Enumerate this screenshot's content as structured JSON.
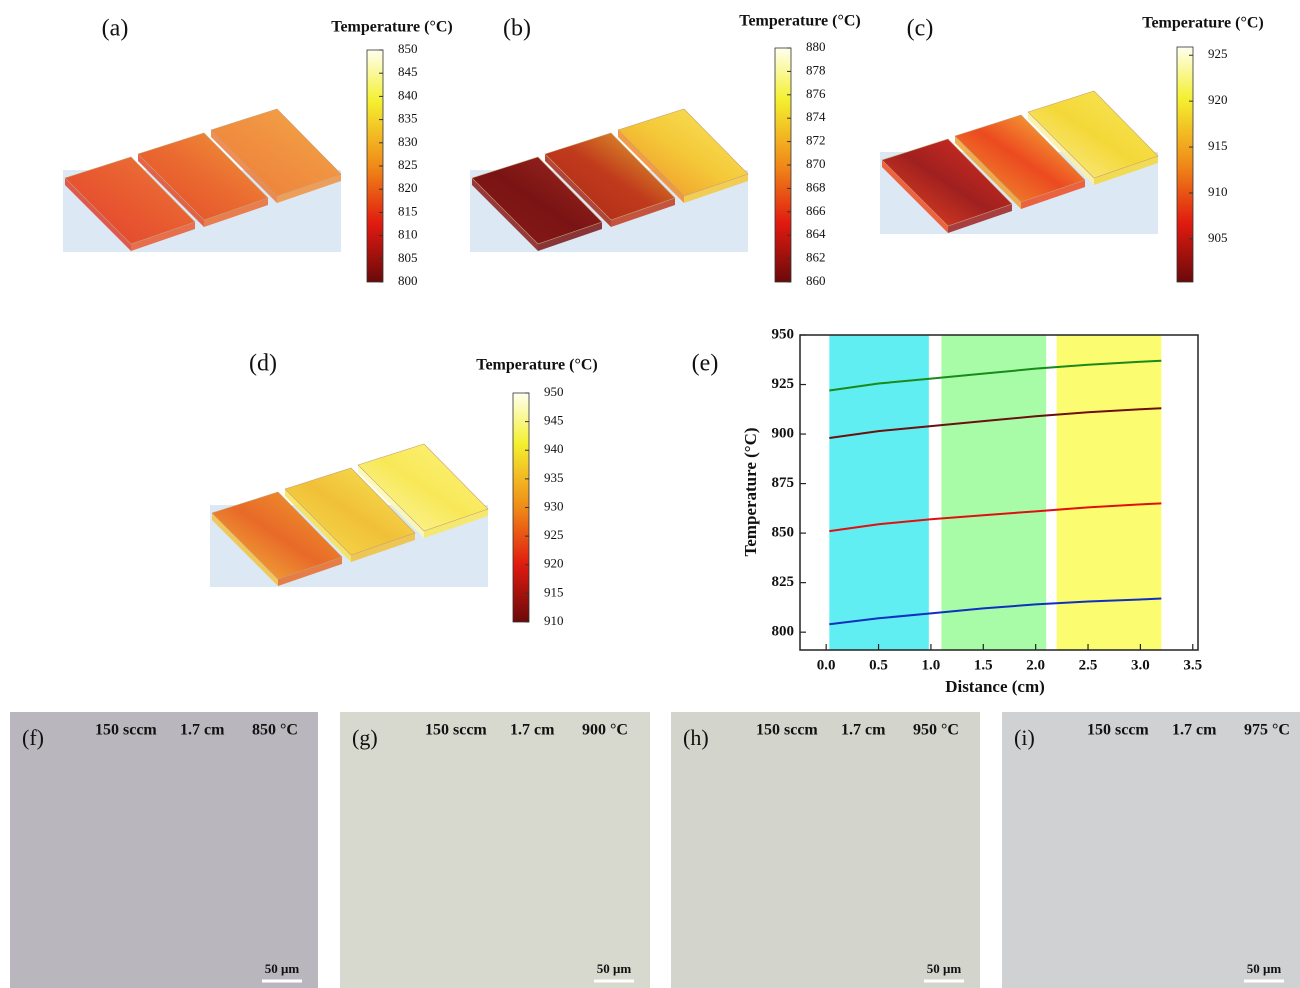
{
  "panels": [
    {
      "label": "(a)",
      "colorbar": {
        "title": "Temperature (°C)",
        "lim": [
          800,
          850
        ],
        "ticks": [
          800,
          805,
          810,
          815,
          820,
          825,
          830,
          835,
          840,
          845,
          850
        ]
      }
    },
    {
      "label": "(b)",
      "colorbar": {
        "title": "Temperature (°C)",
        "lim": [
          860,
          880
        ],
        "ticks": [
          860,
          862,
          864,
          866,
          868,
          870,
          872,
          874,
          876,
          878,
          880
        ]
      }
    },
    {
      "label": "(c)",
      "colorbar": {
        "title": "Temperature (°C)",
        "lim": [
          900.3,
          925.9
        ],
        "ticks": [
          905,
          910,
          915,
          920,
          925
        ]
      }
    },
    {
      "label": "(d)",
      "colorbar": {
        "title": "Temperature (°C)",
        "lim": [
          910,
          950
        ],
        "ticks": [
          910,
          915,
          920,
          925,
          930,
          935,
          940,
          945,
          950
        ]
      }
    }
  ],
  "chart_data": {
    "type": "line",
    "label": "(e)",
    "x_label": "Distance (cm)",
    "y_label": "Temperature (°C)",
    "x": [
      0.03,
      0.5,
      1.0,
      1.5,
      2.0,
      2.5,
      3.0,
      3.2
    ],
    "series": [
      {
        "color": "#1a8a1a",
        "values": [
          922,
          925.5,
          928,
          930.5,
          933,
          935,
          936.5,
          937
        ]
      },
      {
        "color": "#6b0f0f",
        "values": [
          898,
          901.5,
          904,
          906.5,
          909,
          911,
          912.5,
          913
        ]
      },
      {
        "color": "#e01010",
        "values": [
          851,
          854.5,
          857,
          859,
          861,
          863,
          864.5,
          865
        ]
      },
      {
        "color": "#1030c0",
        "values": [
          804,
          807,
          809.5,
          812,
          814,
          815.5,
          816.5,
          817
        ]
      }
    ],
    "bands": [
      {
        "range": [
          0.03,
          0.98
        ],
        "color": "#60eef2"
      },
      {
        "range": [
          1.1,
          2.1
        ],
        "color": "#a8fca8"
      },
      {
        "range": [
          2.2,
          3.2
        ],
        "color": "#fcfc70"
      }
    ],
    "xlim": [
      -0.25,
      3.55
    ],
    "ylim": [
      791,
      950
    ],
    "xticks": [
      {
        "value": 0,
        "label": "0.0"
      },
      0.5,
      {
        "value": 1,
        "label": "1.0"
      },
      1.5,
      {
        "value": 2,
        "label": "2.0"
      },
      2.5,
      {
        "value": 3,
        "label": "3.0"
      },
      3.5
    ],
    "yticks": [
      800,
      825,
      850,
      875,
      900,
      925,
      950
    ]
  },
  "micrographs": [
    {
      "label": "(f)",
      "flow": "150 sccm",
      "distance": "1.7 cm",
      "temperature": "850 °C",
      "scale": "50 μm"
    },
    {
      "label": "(g)",
      "flow": "150 sccm",
      "distance": "1.7 cm",
      "temperature": "900 °C",
      "scale": "50 μm"
    },
    {
      "label": "(h)",
      "flow": "150 sccm",
      "distance": "1.7 cm",
      "temperature": "950 °C",
      "scale": "50 μm"
    },
    {
      "label": "(i)",
      "flow": "150 sccm",
      "distance": "1.7 cm",
      "temperature": "975 °C",
      "scale": "50 μm"
    }
  ]
}
